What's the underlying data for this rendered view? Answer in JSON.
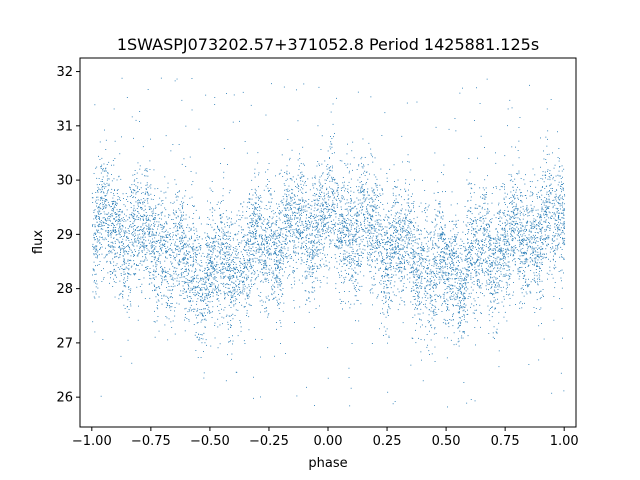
{
  "chart_data": {
    "type": "scatter",
    "title": "1SWASPJ073202.57+371052.8 Period 1425881.125s",
    "xlabel": "phase",
    "ylabel": "flux",
    "xlim": [
      -1.05,
      1.05
    ],
    "ylim": [
      25.45,
      32.25
    ],
    "xticks": [
      -1.0,
      -0.75,
      -0.5,
      -0.25,
      0.0,
      0.25,
      0.5,
      0.75,
      1.0
    ],
    "xtick_labels": [
      "−1.00",
      "−0.75",
      "−0.50",
      "−0.25",
      "0.00",
      "0.25",
      "0.50",
      "0.75",
      "1.00"
    ],
    "yticks": [
      26,
      27,
      28,
      29,
      30,
      31,
      32
    ],
    "ytick_labels": [
      "26",
      "27",
      "28",
      "29",
      "30",
      "31",
      "32"
    ],
    "grid": false,
    "color": "#1f77b4",
    "phase_range": [
      -1.0,
      1.0
    ],
    "mean_curve": {
      "phase": [
        -1.0,
        -0.9,
        -0.8,
        -0.7,
        -0.6,
        -0.55,
        -0.5,
        -0.45,
        -0.4,
        -0.3,
        -0.2,
        -0.1,
        0.0,
        0.1,
        0.2,
        0.3,
        0.4,
        0.45,
        0.5,
        0.55,
        0.6,
        0.7,
        0.8,
        0.9,
        1.0
      ],
      "flux": [
        29.2,
        29.1,
        29.0,
        28.8,
        28.5,
        28.35,
        28.3,
        28.35,
        28.5,
        28.75,
        29.0,
        29.15,
        29.25,
        29.1,
        29.0,
        28.8,
        28.5,
        28.35,
        28.3,
        28.35,
        28.5,
        28.75,
        29.0,
        29.15,
        29.2
      ]
    },
    "scatter_sigma": 0.55,
    "outlier_range": [
      25.8,
      32.0
    ]
  }
}
